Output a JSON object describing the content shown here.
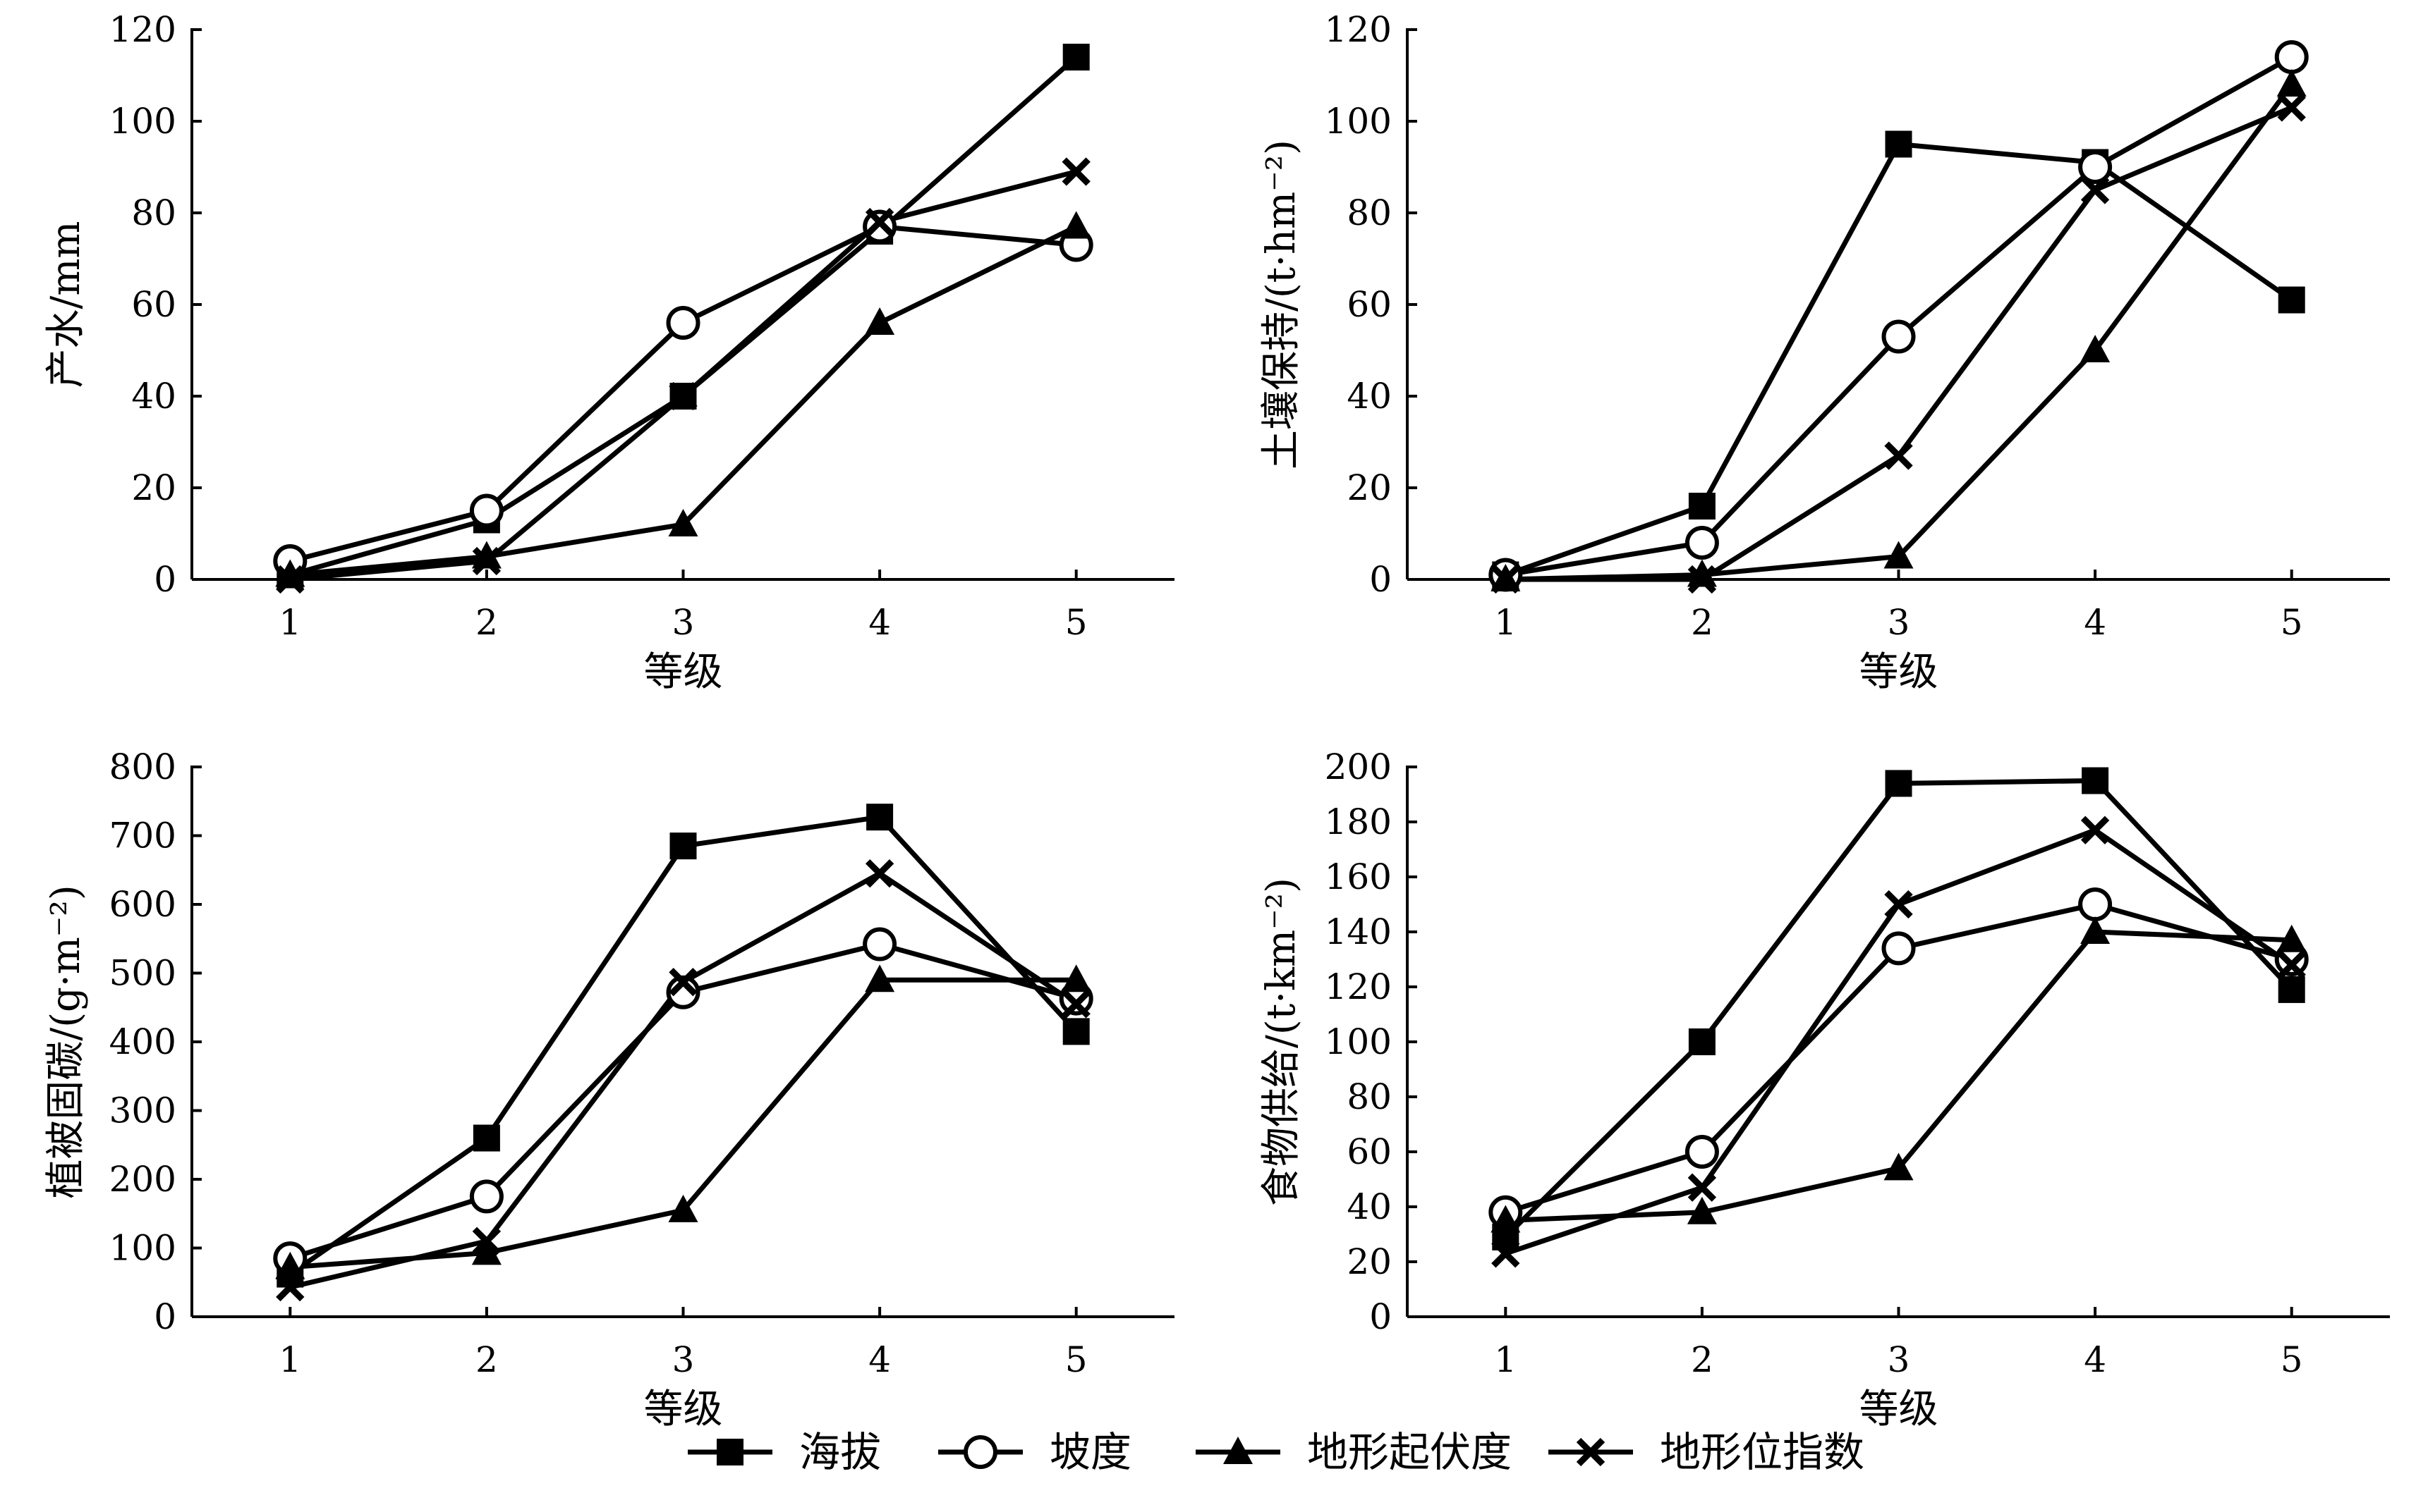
{
  "legend": {
    "position": "bottom",
    "items": [
      {
        "name": "海拔",
        "marker": "square"
      },
      {
        "name": "坡度",
        "marker": "circle"
      },
      {
        "name": "地形起伏度",
        "marker": "triangle"
      },
      {
        "name": "地形位指数",
        "marker": "x"
      }
    ]
  },
  "chart_data": [
    {
      "type": "line",
      "categories": [
        "1",
        "2",
        "3",
        "4",
        "5"
      ],
      "xlabel": "等级",
      "ylabel": "产水/mm",
      "ylim": [
        0,
        120
      ],
      "yticks": [
        0,
        20,
        40,
        60,
        80,
        100,
        120
      ],
      "series": [
        {
          "name": "海拔",
          "values": [
            1,
            13,
            40,
            76,
            114
          ]
        },
        {
          "name": "坡度",
          "values": [
            4,
            15,
            56,
            77,
            73
          ]
        },
        {
          "name": "地形起伏度",
          "values": [
            1,
            5,
            12,
            56,
            77
          ]
        },
        {
          "name": "地形位指数",
          "values": [
            0,
            4,
            40,
            78,
            89
          ]
        }
      ]
    },
    {
      "type": "line",
      "categories": [
        "1",
        "2",
        "3",
        "4",
        "5"
      ],
      "xlabel": "等级",
      "ylabel": "土壤保持/(t·hm⁻²)",
      "ylim": [
        0,
        120
      ],
      "yticks": [
        0,
        20,
        40,
        60,
        80,
        100,
        120
      ],
      "series": [
        {
          "name": "海拔",
          "values": [
            1,
            16,
            95,
            91,
            61
          ]
        },
        {
          "name": "坡度",
          "values": [
            1,
            8,
            53,
            90,
            114
          ]
        },
        {
          "name": "地形起伏度",
          "values": [
            0,
            1,
            5,
            50,
            108
          ]
        },
        {
          "name": "地形位指数",
          "values": [
            0,
            0,
            27,
            85,
            103
          ]
        }
      ]
    },
    {
      "type": "line",
      "categories": [
        "1",
        "2",
        "3",
        "4",
        "5"
      ],
      "xlabel": "等级",
      "ylabel": "植被固碳/(g·m⁻²)",
      "ylim": [
        0,
        800
      ],
      "yticks": [
        0,
        100,
        200,
        300,
        400,
        500,
        600,
        700,
        800
      ],
      "series": [
        {
          "name": "海拔",
          "values": [
            62,
            260,
            685,
            727,
            415
          ]
        },
        {
          "name": "坡度",
          "values": [
            85,
            175,
            472,
            542,
            463
          ]
        },
        {
          "name": "地形起伏度",
          "values": [
            72,
            93,
            155,
            490,
            490
          ]
        },
        {
          "name": "地形位指数",
          "values": [
            43,
            110,
            487,
            645,
            455
          ]
        }
      ]
    },
    {
      "type": "line",
      "categories": [
        "1",
        "2",
        "3",
        "4",
        "5"
      ],
      "xlabel": "等级",
      "ylabel": "食物供给/(t·km⁻²)",
      "ylim": [
        0,
        200
      ],
      "yticks": [
        0,
        20,
        40,
        60,
        80,
        100,
        120,
        140,
        160,
        180,
        200
      ],
      "series": [
        {
          "name": "海拔",
          "values": [
            29,
            100,
            194,
            195,
            119
          ]
        },
        {
          "name": "坡度",
          "values": [
            38,
            60,
            134,
            150,
            130
          ]
        },
        {
          "name": "地形起伏度",
          "values": [
            35,
            38,
            54,
            140,
            137
          ]
        },
        {
          "name": "地形位指数",
          "values": [
            23,
            47,
            150,
            177,
            128
          ]
        }
      ]
    }
  ]
}
